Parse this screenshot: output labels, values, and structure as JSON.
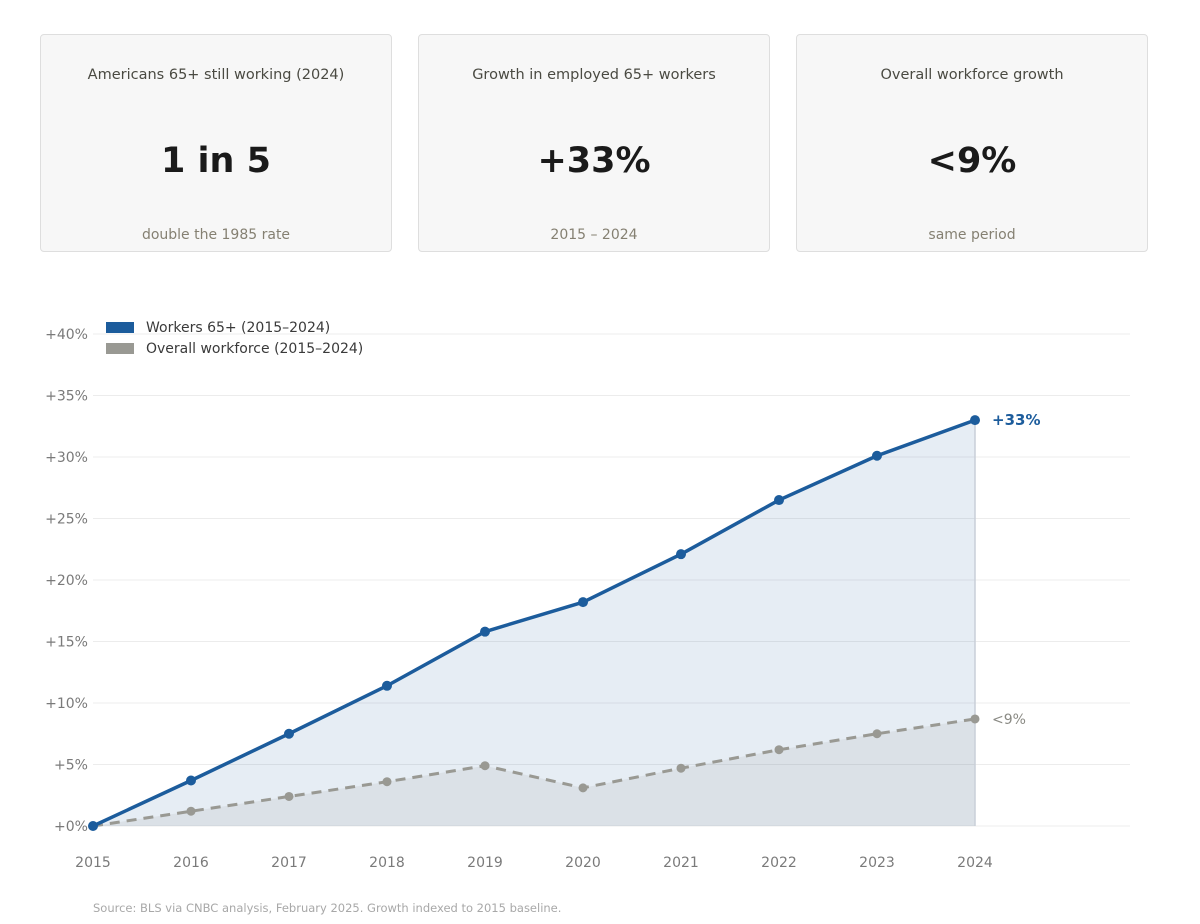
{
  "cards": [
    {
      "title": "Americans 65+ still working (2024)",
      "value": "1 in 5",
      "subtitle": "double the 1985 rate"
    },
    {
      "title": "Growth in employed 65+ workers",
      "value": "+33%",
      "subtitle": "2015 – 2024"
    },
    {
      "title": "Overall workforce growth",
      "value": "<9%",
      "subtitle": "same period"
    }
  ],
  "source": "Source: BLS via CNBC analysis, February 2025. Growth indexed to 2015 baseline.",
  "chart_data": {
    "type": "line",
    "x": [
      2015,
      2016,
      2017,
      2018,
      2019,
      2020,
      2021,
      2022,
      2023,
      2024
    ],
    "ylim": [
      0,
      40
    ],
    "yticks": [
      0,
      5,
      10,
      15,
      20,
      25,
      30,
      35,
      40
    ],
    "ytick_labels": [
      "+0%",
      "+5%",
      "+10%",
      "+15%",
      "+20%",
      "+25%",
      "+30%",
      "+35%",
      "+40%"
    ],
    "xtick_labels": [
      "2015",
      "2016",
      "2017",
      "2018",
      "2019",
      "2020",
      "2021",
      "2022",
      "2023",
      "2024"
    ],
    "grid": true,
    "legend": "top-left",
    "series": [
      {
        "name": "Workers 65+ (2015–2024)",
        "values": [
          0,
          3.7,
          7.5,
          11.4,
          15.8,
          18.2,
          22.1,
          26.5,
          30.1,
          33.0
        ],
        "color": "#1c5c9c",
        "end_label": "+33%",
        "style": "solid",
        "area": true
      },
      {
        "name": "Overall workforce (2015–2024)",
        "values": [
          0,
          1.2,
          2.4,
          3.6,
          4.9,
          3.1,
          4.7,
          6.2,
          7.5,
          8.7
        ],
        "color": "#999993",
        "end_label": "<9%",
        "style": "dashed",
        "area": true
      }
    ]
  }
}
